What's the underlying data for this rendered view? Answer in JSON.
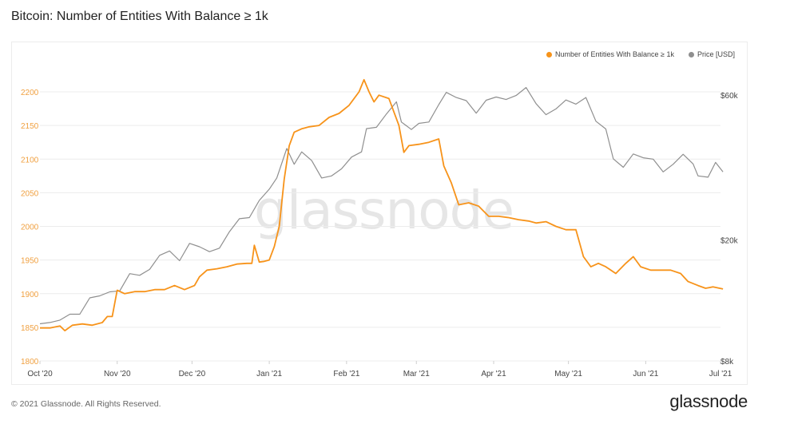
{
  "title": "Bitcoin: Number of Entities With Balance ≥ 1k",
  "footer": "© 2021 Glassnode. All Rights Reserved.",
  "brand": "glassnode",
  "watermark": "glassnode",
  "colors": {
    "entities": "#f7931a",
    "price": "#8f8f8f",
    "grid": "#ececec",
    "text": "#f0a040"
  },
  "chart_data": {
    "type": "line",
    "x_ticks": [
      "Oct '20",
      "Nov '20",
      "Dec '20",
      "Jan '21",
      "Feb '21",
      "Mar '21",
      "Apr '21",
      "May '21",
      "Jun '21",
      "Jul '21"
    ],
    "x_range": [
      "2020-10-01",
      "2021-07-01"
    ],
    "y_left": {
      "ticks": [
        "1800",
        "1850",
        "1900",
        "1950",
        "2000",
        "2050",
        "2100",
        "2150",
        "2200"
      ],
      "range": [
        1800,
        2200
      ]
    },
    "y_right": {
      "ticks": [
        "$8k",
        "$20k",
        "$60k"
      ],
      "scale": "log"
    },
    "legend_position": "top-right",
    "series": [
      {
        "name": "Number of Entities With Balance ≥ 1k",
        "axis": "left",
        "points": [
          [
            "2020-10-01",
            1849
          ],
          [
            "2020-10-05",
            1849
          ],
          [
            "2020-10-09",
            1852
          ],
          [
            "2020-10-11",
            1845
          ],
          [
            "2020-10-14",
            1853
          ],
          [
            "2020-10-18",
            1855
          ],
          [
            "2020-10-22",
            1853
          ],
          [
            "2020-10-26",
            1857
          ],
          [
            "2020-10-28",
            1866
          ],
          [
            "2020-10-30",
            1866
          ],
          [
            "2020-11-01",
            1905
          ],
          [
            "2020-11-04",
            1900
          ],
          [
            "2020-11-08",
            1903
          ],
          [
            "2020-11-12",
            1903
          ],
          [
            "2020-11-16",
            1906
          ],
          [
            "2020-11-20",
            1906
          ],
          [
            "2020-11-24",
            1912
          ],
          [
            "2020-11-28",
            1906
          ],
          [
            "2020-12-02",
            1912
          ],
          [
            "2020-12-04",
            1925
          ],
          [
            "2020-12-07",
            1935
          ],
          [
            "2020-12-11",
            1937
          ],
          [
            "2020-12-15",
            1940
          ],
          [
            "2020-12-19",
            1944
          ],
          [
            "2020-12-23",
            1945
          ],
          [
            "2020-12-25",
            1945
          ],
          [
            "2020-12-26",
            1972
          ],
          [
            "2020-12-28",
            1947
          ],
          [
            "2020-12-30",
            1948
          ],
          [
            "2021-01-01",
            1950
          ],
          [
            "2021-01-03",
            1970
          ],
          [
            "2021-01-05",
            2000
          ],
          [
            "2021-01-07",
            2070
          ],
          [
            "2021-01-09",
            2120
          ],
          [
            "2021-01-11",
            2140
          ],
          [
            "2021-01-14",
            2145
          ],
          [
            "2021-01-17",
            2148
          ],
          [
            "2021-01-21",
            2150
          ],
          [
            "2021-01-25",
            2162
          ],
          [
            "2021-01-29",
            2168
          ],
          [
            "2021-02-02",
            2180
          ],
          [
            "2021-02-06",
            2200
          ],
          [
            "2021-02-08",
            2218
          ],
          [
            "2021-02-10",
            2200
          ],
          [
            "2021-02-12",
            2185
          ],
          [
            "2021-02-14",
            2195
          ],
          [
            "2021-02-18",
            2190
          ],
          [
            "2021-02-22",
            2150
          ],
          [
            "2021-02-24",
            2110
          ],
          [
            "2021-02-26",
            2120
          ],
          [
            "2021-03-02",
            2122
          ],
          [
            "2021-03-06",
            2125
          ],
          [
            "2021-03-10",
            2130
          ],
          [
            "2021-03-12",
            2090
          ],
          [
            "2021-03-15",
            2065
          ],
          [
            "2021-03-18",
            2032
          ],
          [
            "2021-03-22",
            2035
          ],
          [
            "2021-03-26",
            2030
          ],
          [
            "2021-03-30",
            2015
          ],
          [
            "2021-04-03",
            2015
          ],
          [
            "2021-04-07",
            2013
          ],
          [
            "2021-04-11",
            2010
          ],
          [
            "2021-04-15",
            2008
          ],
          [
            "2021-04-18",
            2005
          ],
          [
            "2021-04-22",
            2007
          ],
          [
            "2021-04-26",
            2000
          ],
          [
            "2021-04-30",
            1995
          ],
          [
            "2021-05-04",
            1995
          ],
          [
            "2021-05-07",
            1955
          ],
          [
            "2021-05-10",
            1940
          ],
          [
            "2021-05-13",
            1945
          ],
          [
            "2021-05-16",
            1940
          ],
          [
            "2021-05-20",
            1930
          ],
          [
            "2021-05-24",
            1945
          ],
          [
            "2021-05-27",
            1955
          ],
          [
            "2021-05-30",
            1940
          ],
          [
            "2021-06-03",
            1935
          ],
          [
            "2021-06-07",
            1935
          ],
          [
            "2021-06-11",
            1935
          ],
          [
            "2021-06-15",
            1930
          ],
          [
            "2021-06-18",
            1918
          ],
          [
            "2021-06-22",
            1912
          ],
          [
            "2021-06-25",
            1908
          ],
          [
            "2021-06-28",
            1910
          ],
          [
            "2021-07-02",
            1907
          ]
        ]
      },
      {
        "name": "Price [USD]",
        "axis": "right",
        "points": [
          [
            "2020-10-01",
            10600
          ],
          [
            "2020-10-05",
            10700
          ],
          [
            "2020-10-09",
            10900
          ],
          [
            "2020-10-13",
            11400
          ],
          [
            "2020-10-17",
            11400
          ],
          [
            "2020-10-21",
            12900
          ],
          [
            "2020-10-25",
            13100
          ],
          [
            "2020-10-29",
            13500
          ],
          [
            "2020-11-02",
            13600
          ],
          [
            "2020-11-06",
            15500
          ],
          [
            "2020-11-10",
            15300
          ],
          [
            "2020-11-14",
            16000
          ],
          [
            "2020-11-18",
            17800
          ],
          [
            "2020-11-22",
            18400
          ],
          [
            "2020-11-26",
            17100
          ],
          [
            "2020-11-30",
            19500
          ],
          [
            "2020-12-04",
            19000
          ],
          [
            "2020-12-08",
            18300
          ],
          [
            "2020-12-12",
            18800
          ],
          [
            "2020-12-16",
            21300
          ],
          [
            "2020-12-20",
            23500
          ],
          [
            "2020-12-24",
            23700
          ],
          [
            "2020-12-28",
            27000
          ],
          [
            "2021-01-01",
            29400
          ],
          [
            "2021-01-04",
            32000
          ],
          [
            "2021-01-08",
            40000
          ],
          [
            "2021-01-11",
            35500
          ],
          [
            "2021-01-14",
            39000
          ],
          [
            "2021-01-18",
            36500
          ],
          [
            "2021-01-22",
            32000
          ],
          [
            "2021-01-26",
            32500
          ],
          [
            "2021-01-30",
            34300
          ],
          [
            "2021-02-03",
            37500
          ],
          [
            "2021-02-07",
            39000
          ],
          [
            "2021-02-09",
            46500
          ],
          [
            "2021-02-13",
            47000
          ],
          [
            "2021-02-17",
            52000
          ],
          [
            "2021-02-21",
            57000
          ],
          [
            "2021-02-23",
            48900
          ],
          [
            "2021-02-27",
            46200
          ],
          [
            "2021-03-02",
            48400
          ],
          [
            "2021-03-06",
            48900
          ],
          [
            "2021-03-10",
            55800
          ],
          [
            "2021-03-13",
            61200
          ],
          [
            "2021-03-17",
            58900
          ],
          [
            "2021-03-21",
            57500
          ],
          [
            "2021-03-25",
            52300
          ],
          [
            "2021-03-29",
            57700
          ],
          [
            "2021-04-02",
            59100
          ],
          [
            "2021-04-06",
            58000
          ],
          [
            "2021-04-10",
            59800
          ],
          [
            "2021-04-14",
            63500
          ],
          [
            "2021-04-18",
            56200
          ],
          [
            "2021-04-22",
            51700
          ],
          [
            "2021-04-26",
            54000
          ],
          [
            "2021-04-30",
            57800
          ],
          [
            "2021-05-04",
            56000
          ],
          [
            "2021-05-08",
            58900
          ],
          [
            "2021-05-12",
            49200
          ],
          [
            "2021-05-16",
            46400
          ],
          [
            "2021-05-19",
            37000
          ],
          [
            "2021-05-23",
            34700
          ],
          [
            "2021-05-27",
            38400
          ],
          [
            "2021-05-31",
            37300
          ],
          [
            "2021-06-04",
            36900
          ],
          [
            "2021-06-08",
            33500
          ],
          [
            "2021-06-12",
            35500
          ],
          [
            "2021-06-16",
            38300
          ],
          [
            "2021-06-20",
            35600
          ],
          [
            "2021-06-22",
            32500
          ],
          [
            "2021-06-26",
            32200
          ],
          [
            "2021-06-29",
            36000
          ],
          [
            "2021-07-02",
            33500
          ]
        ]
      }
    ]
  }
}
